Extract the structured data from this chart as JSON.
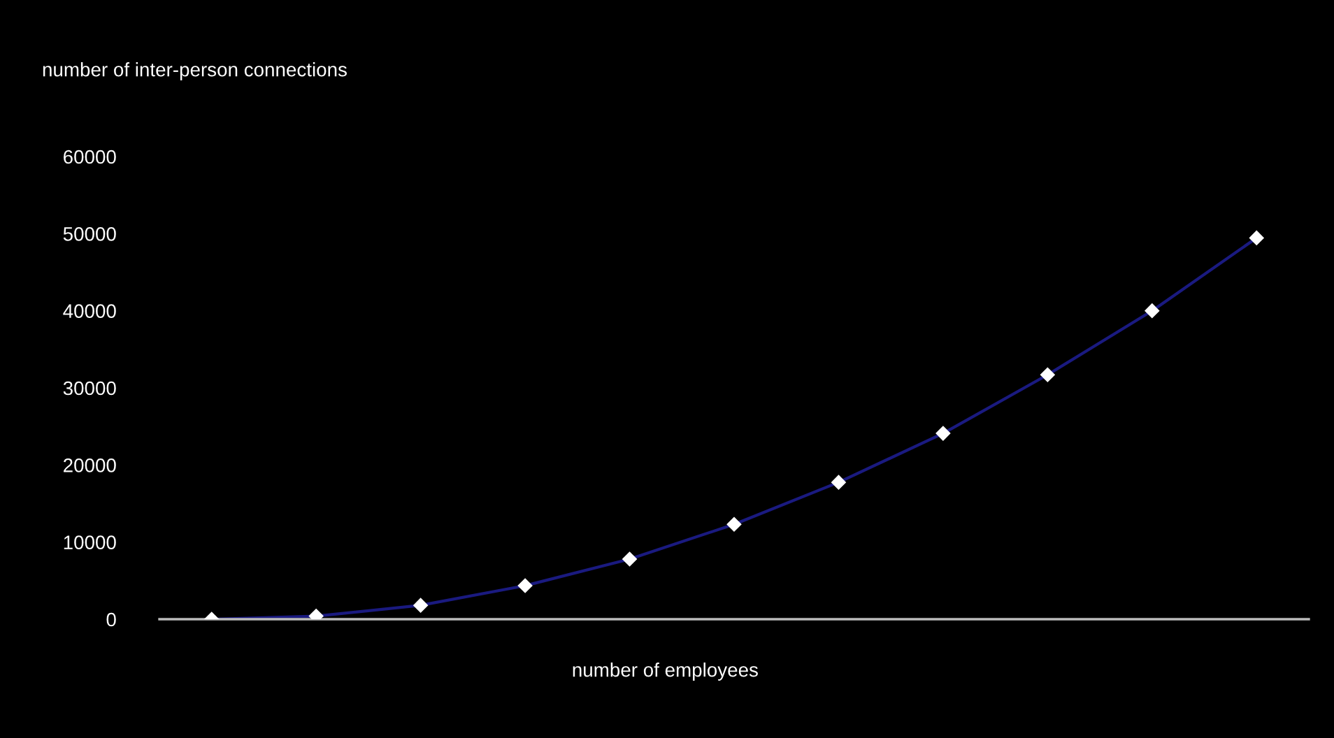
{
  "chart_data": {
    "type": "line",
    "ylabel": "number of inter-person connections",
    "xlabel": "number of employees",
    "categories": [
      null,
      null,
      null,
      null,
      null,
      null,
      null,
      null,
      null,
      null,
      null
    ],
    "series": [
      {
        "color": "#1a1a80",
        "values": [
          0,
          400,
          1800,
          4350,
          7800,
          12300,
          17750,
          24100,
          31700,
          40000,
          49450
        ]
      }
    ],
    "ylim": [
      0,
      60000
    ],
    "yticks": [
      0,
      10000,
      20000,
      30000,
      40000,
      50000,
      60000
    ],
    "marker": "diamond",
    "grid": false,
    "legend": false
  }
}
